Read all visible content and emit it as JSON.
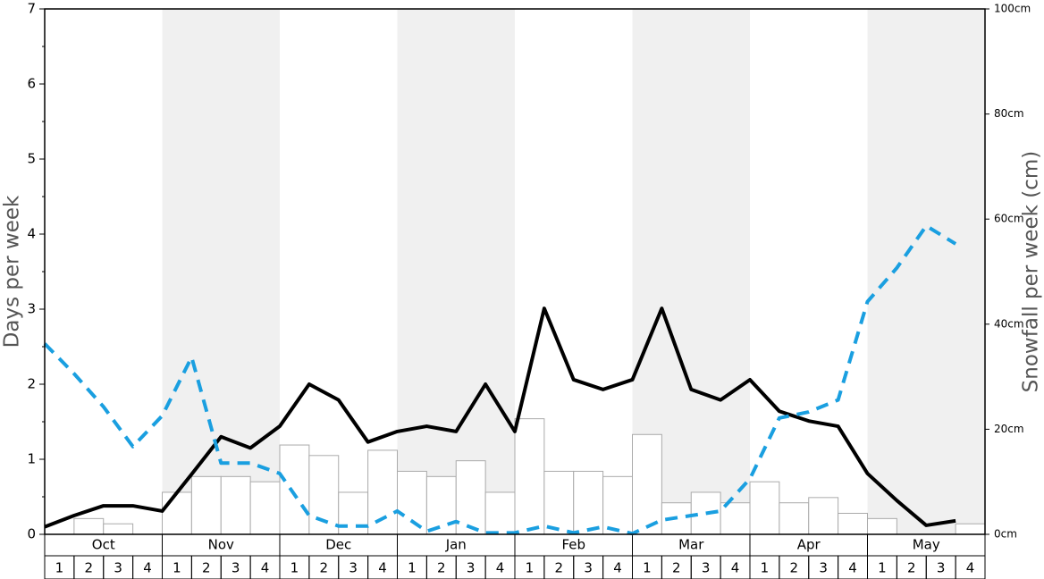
{
  "chart_data": {
    "type": "snowfall-combo",
    "ylabel": "Days per week",
    "y2label": "Snowfall per week (cm)",
    "months": [
      "Oct",
      "Nov",
      "Dec",
      "Jan",
      "Feb",
      "Mar",
      "Apr",
      "May"
    ],
    "weeks": [
      "1",
      "2",
      "3",
      "4"
    ],
    "ylim": [
      0,
      7
    ],
    "yticks": [
      0,
      1,
      2,
      3,
      4,
      5,
      6,
      7
    ],
    "y2lim": [
      0,
      100
    ],
    "y2ticks": [
      {
        "value": 0,
        "label": "0cm"
      },
      {
        "value": 20,
        "label": "20cm"
      },
      {
        "value": 40,
        "label": "40cm"
      },
      {
        "value": 60,
        "label": "60cm"
      },
      {
        "value": 80,
        "label": "80cm"
      },
      {
        "value": 100,
        "label": "100cm"
      }
    ],
    "series": [
      {
        "type": "bar",
        "axis": "y2",
        "color": "#ffffff",
        "values": [
          0,
          3,
          2,
          0,
          8,
          11,
          11,
          10,
          17,
          15,
          8,
          16,
          12,
          11,
          14,
          8,
          22,
          12,
          12,
          11,
          19,
          6,
          8,
          6,
          10,
          6,
          7,
          4,
          3,
          0,
          0,
          2
        ]
      },
      {
        "type": "line",
        "color": "#000000",
        "values": [
          0.1,
          0.25,
          0.38,
          0.38,
          0.31,
          0.8,
          1.3,
          1.15,
          1.44,
          2.0,
          1.79,
          1.23,
          1.37,
          1.44,
          1.37,
          2.0,
          1.37,
          3.01,
          2.06,
          1.93,
          2.06,
          3.01,
          1.93,
          1.79,
          2.06,
          1.64,
          1.51,
          1.44,
          0.81,
          0.45,
          0.12,
          0.18
        ]
      },
      {
        "type": "dashed",
        "color": "#1a9fe0",
        "values": [
          2.54,
          2.14,
          1.7,
          1.17,
          1.58,
          2.36,
          0.95,
          0.95,
          0.81,
          0.25,
          0.11,
          0.11,
          0.31,
          0.04,
          0.17,
          0.02,
          0.02,
          0.11,
          0.02,
          0.1,
          0.01,
          0.19,
          0.25,
          0.31,
          0.74,
          1.55,
          1.63,
          1.79,
          3.1,
          3.55,
          4.11,
          3.87
        ]
      }
    ]
  }
}
